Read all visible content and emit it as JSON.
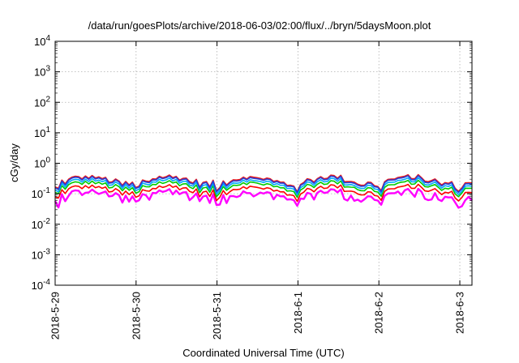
{
  "chart_data": {
    "type": "line",
    "title": "/data/run/goesPlots/archive/2018-06-03/02:00/flux/../bryn/5daysMoon.plot",
    "xlabel": "Coordinated Universal Time (UTC)",
    "ylabel": "cGy/day",
    "yscale": "log",
    "ylim_exp": [
      -4,
      4
    ],
    "y_ticks": [
      {
        "base": "10",
        "exp": "-4",
        "e": -4
      },
      {
        "base": "10",
        "exp": "-3",
        "e": -3
      },
      {
        "base": "10",
        "exp": "-2",
        "e": -2
      },
      {
        "base": "10",
        "exp": "-1",
        "e": -1
      },
      {
        "base": "10",
        "exp": "0",
        "e": 0
      },
      {
        "base": "10",
        "exp": "1",
        "e": 1
      },
      {
        "base": "10",
        "exp": "2",
        "e": 2
      },
      {
        "base": "10",
        "exp": "3",
        "e": 3
      },
      {
        "base": "10",
        "exp": "4",
        "e": 4
      }
    ],
    "x_range_days": [
      0,
      5.15
    ],
    "x_ticks": [
      {
        "label": "2018-5-29",
        "day": 0
      },
      {
        "label": "2018-5-30",
        "day": 1
      },
      {
        "label": "2018-5-31",
        "day": 2
      },
      {
        "label": "2018-6-1",
        "day": 3
      },
      {
        "label": "2018-6-2",
        "day": 4
      },
      {
        "label": "2018-6-3",
        "day": 5
      }
    ],
    "grid": true,
    "series": [
      {
        "color": "#ff00ff",
        "level": 0.1,
        "noise": 0.65
      },
      {
        "color": "#ff0000",
        "level": 0.14,
        "noise": 0.22
      },
      {
        "color": "#00cc00",
        "level": 0.19,
        "noise": 0.18
      },
      {
        "color": "#00aaff",
        "level": 0.23,
        "noise": 0.25
      },
      {
        "color": "#ee1111",
        "level": 0.29,
        "noise": 0.22
      },
      {
        "color": "#2244dd",
        "level": 0.27,
        "noise": 0.24
      }
    ]
  }
}
